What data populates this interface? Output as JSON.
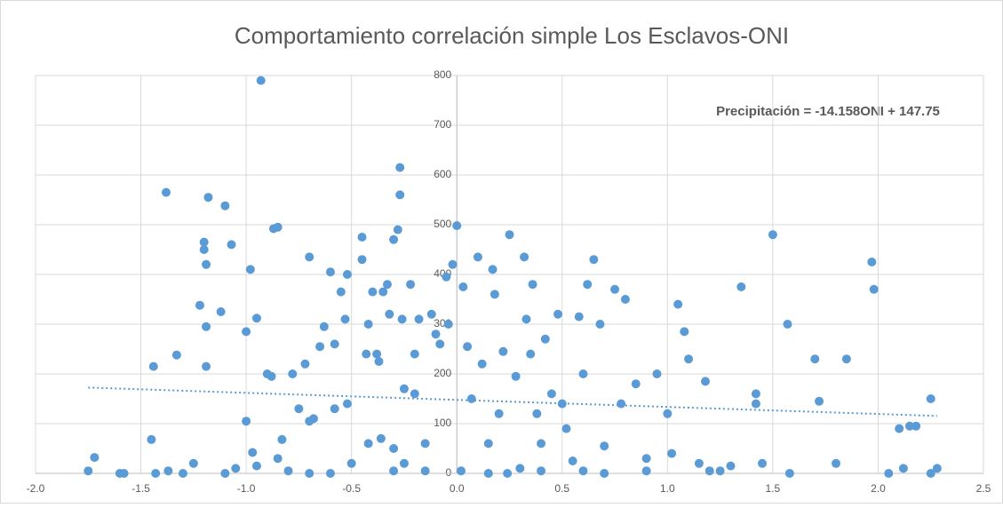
{
  "chart_data": {
    "type": "scatter",
    "title": "Comportamiento  correlación simple  Los Esclavos-ONI",
    "annotation": "Precipitación = -14.158ONI  + 147.75",
    "color": "#5b9bd5",
    "trendline": {
      "slope": -14.158,
      "intercept": 147.75,
      "x": [
        -1.75,
        2.28
      ],
      "color": "#5b9bd5"
    },
    "grid": true,
    "xlim": [
      -2,
      2.5
    ],
    "ylim": [
      0,
      800
    ],
    "xticks": [
      {
        "value": -2,
        "label": "-2.0"
      },
      {
        "value": -1.5,
        "label": "-1.5"
      },
      {
        "value": -1,
        "label": "-1.0"
      },
      {
        "value": -0.5,
        "label": "-0.5"
      },
      {
        "value": 0,
        "label": "0.0"
      },
      {
        "value": 0.5,
        "label": "0.5"
      },
      {
        "value": 1,
        "label": "1.0"
      },
      {
        "value": 1.5,
        "label": "1.5"
      },
      {
        "value": 2,
        "label": "2.0"
      },
      {
        "value": 2.5,
        "label": "2.5"
      }
    ],
    "yticks": [
      0,
      100,
      200,
      300,
      400,
      500,
      600,
      700,
      800
    ],
    "x": [
      -1.75,
      -1.72,
      -1.6,
      -1.58,
      -1.45,
      -1.44,
      -1.43,
      -1.38,
      -1.37,
      -1.33,
      -1.3,
      -1.25,
      -1.22,
      -1.2,
      -1.2,
      -1.19,
      -1.19,
      -1.19,
      -1.18,
      -1.12,
      -1.1,
      -1.07,
      -1.05,
      -1.0,
      -1.0,
      -0.98,
      -0.97,
      -0.95,
      -0.95,
      -0.93,
      -0.9,
      -0.88,
      -0.87,
      -0.85,
      -0.85,
      -0.83,
      -0.8,
      -0.78,
      -0.75,
      -0.72,
      -0.7,
      -0.7,
      -0.68,
      -0.65,
      -0.63,
      -0.6,
      -0.58,
      -0.58,
      -0.55,
      -0.53,
      -0.52,
      -0.52,
      -0.5,
      -0.45,
      -0.45,
      -0.43,
      -0.42,
      -0.42,
      -0.4,
      -0.38,
      -0.37,
      -0.36,
      -0.35,
      -0.33,
      -0.32,
      -0.3,
      -0.3,
      -0.28,
      -0.27,
      -0.27,
      -0.26,
      -0.25,
      -0.25,
      -0.22,
      -0.2,
      -0.2,
      -0.18,
      -0.15,
      -0.12,
      -0.1,
      -0.08,
      -0.05,
      -0.04,
      -0.02,
      0.0,
      0.02,
      0.03,
      0.05,
      0.07,
      0.1,
      0.12,
      0.15,
      0.17,
      0.18,
      0.2,
      0.22,
      0.24,
      0.25,
      0.28,
      0.3,
      0.32,
      0.33,
      0.35,
      0.36,
      0.38,
      0.4,
      0.42,
      0.45,
      0.48,
      0.5,
      0.52,
      0.55,
      0.58,
      0.6,
      0.62,
      0.65,
      0.68,
      0.7,
      0.75,
      0.78,
      0.8,
      0.85,
      0.9,
      0.95,
      1.0,
      1.02,
      1.05,
      1.08,
      1.1,
      1.15,
      1.18,
      1.25,
      1.35,
      1.42,
      1.42,
      1.45,
      1.5,
      1.57,
      1.58,
      1.7,
      1.72,
      1.8,
      1.85,
      1.97,
      1.98,
      2.05,
      2.1,
      2.12,
      2.15,
      2.18,
      2.25,
      2.28,
      2.25,
      -0.6,
      -0.3,
      0.4,
      0.7,
      1.2,
      -1.1,
      -0.7,
      0.15,
      0.9,
      -0.15,
      0.6,
      1.3
    ],
    "values": [
      5,
      32,
      0,
      0,
      68,
      215,
      0,
      565,
      5,
      238,
      0,
      20,
      338,
      465,
      450,
      420,
      295,
      215,
      555,
      325,
      538,
      460,
      10,
      105,
      285,
      410,
      42,
      312,
      15,
      790,
      200,
      195,
      492,
      495,
      30,
      68,
      5,
      200,
      130,
      220,
      435,
      105,
      110,
      255,
      295,
      405,
      260,
      130,
      365,
      310,
      400,
      140,
      20,
      475,
      430,
      240,
      300,
      60,
      365,
      240,
      225,
      70,
      365,
      380,
      320,
      470,
      50,
      490,
      615,
      560,
      310,
      170,
      20,
      380,
      240,
      160,
      310,
      60,
      320,
      280,
      260,
      395,
      300,
      420,
      498,
      5,
      375,
      255,
      150,
      435,
      220,
      60,
      410,
      360,
      120,
      245,
      0,
      480,
      195,
      10,
      435,
      310,
      240,
      380,
      120,
      60,
      270,
      160,
      320,
      140,
      90,
      25,
      315,
      200,
      380,
      430,
      300,
      55,
      370,
      140,
      350,
      180,
      5,
      200,
      120,
      40,
      340,
      285,
      230,
      20,
      185,
      5,
      375,
      160,
      140,
      20,
      480,
      300,
      0,
      230,
      145,
      20,
      230,
      425,
      370,
      0,
      90,
      10,
      95,
      95,
      150,
      10,
      0,
      0,
      5,
      5,
      0,
      5,
      0,
      0,
      0,
      30,
      5,
      5,
      15
    ]
  }
}
